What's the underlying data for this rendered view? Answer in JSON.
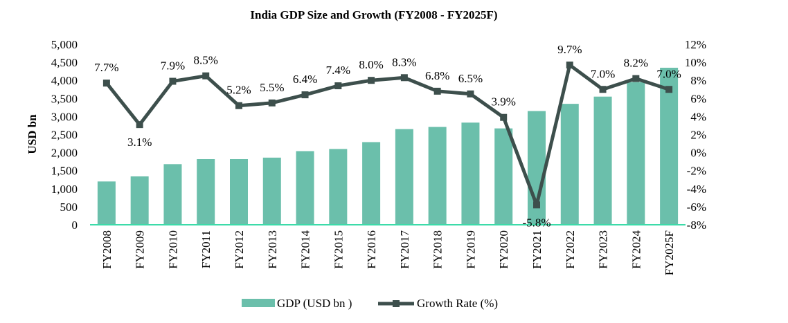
{
  "chart_data": {
    "type": "bar+line",
    "title": "India GDP Size and Growth (FY2008 - FY2025F)",
    "ylabel": "USD bn",
    "y2label": "",
    "categories": [
      "FY2008",
      "FY2009",
      "FY2010",
      "FY2011",
      "FY2012",
      "FY2013",
      "FY2014",
      "FY2015",
      "FY2016",
      "FY2017",
      "FY2018",
      "FY2019",
      "FY2020",
      "FY2021",
      "FY2022",
      "FY2023",
      "FY2024",
      "FY2025F"
    ],
    "series": [
      {
        "name": "GDP (USD bn )",
        "type": "bar",
        "axis": "left",
        "color": "#6bbfab",
        "values": [
          1200,
          1340,
          1680,
          1820,
          1820,
          1860,
          2040,
          2100,
          2290,
          2650,
          2710,
          2830,
          2670,
          3150,
          3350,
          3550,
          3950,
          4350
        ]
      },
      {
        "name": "Growth Rate (%)",
        "type": "line",
        "axis": "right",
        "color": "#3d4f4c",
        "values": [
          7.7,
          3.1,
          7.9,
          8.5,
          5.2,
          5.5,
          6.4,
          7.4,
          8.0,
          8.3,
          6.8,
          6.5,
          3.9,
          -5.8,
          9.7,
          7.0,
          8.2,
          7.0
        ],
        "labels": [
          "7.7%",
          "3.1%",
          "7.9%",
          "8.5%",
          "5.2%",
          "5.5%",
          "6.4%",
          "7.4%",
          "8.0%",
          "8.3%",
          "6.8%",
          "6.5%",
          "3.9%",
          "-5.8%",
          "9.7%",
          "7.0%",
          "8.2%",
          "7.0%"
        ]
      }
    ],
    "y_left": {
      "lim": [
        0,
        5000
      ],
      "ticks": [
        0,
        500,
        1000,
        1500,
        2000,
        2500,
        3000,
        3500,
        4000,
        4500,
        5000
      ],
      "tick_labels": [
        "0",
        "500",
        "1,000",
        "1,500",
        "2,000",
        "2,500",
        "3,000",
        "3,500",
        "4,000",
        "4,500",
        "5,000"
      ]
    },
    "y_right": {
      "lim": [
        -8,
        12
      ],
      "ticks": [
        -8,
        -6,
        -4,
        -2,
        0,
        2,
        4,
        6,
        8,
        10,
        12
      ],
      "tick_labels": [
        "-8%",
        "-6%",
        "-4%",
        "-2%",
        "0%",
        "2%",
        "4%",
        "6%",
        "8%",
        "10%",
        "12%"
      ]
    },
    "grid": false,
    "legend": "bottom-center",
    "baseline_color": "#3cdba9"
  }
}
